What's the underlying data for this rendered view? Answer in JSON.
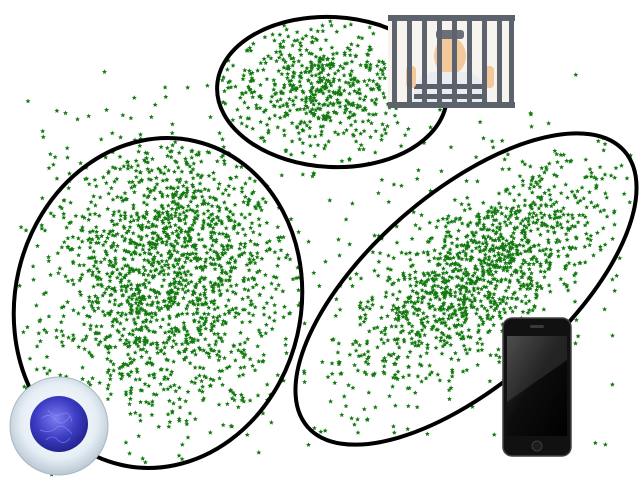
{
  "colors": {
    "background": "#ffffff",
    "points": "#137a10",
    "outline": "#000000"
  },
  "clusters": [
    {
      "id": "cell-cluster",
      "icon": "cell-icon",
      "approx_point_count": 1600
    },
    {
      "id": "prison-cluster",
      "icon": "prison-cell-icon",
      "approx_point_count": 550
    },
    {
      "id": "phone-cluster",
      "icon": "smartphone-icon",
      "approx_point_count": 1200
    }
  ],
  "background_noise": {
    "approx_point_count": 260
  }
}
